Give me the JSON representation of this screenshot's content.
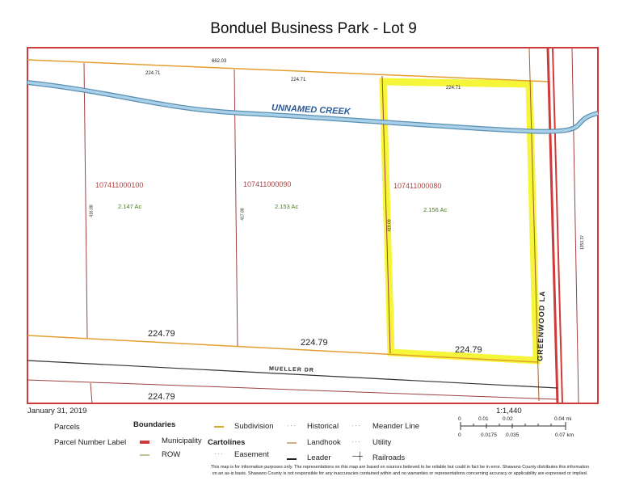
{
  "title": "Bonduel Business Park - Lot 9",
  "map": {
    "creek_label": "UNNAMED CREEK",
    "road_labels": {
      "mueller": "MUELLER DR",
      "greenwood": "GREENWOOD LA"
    },
    "dimensions": {
      "top_total": "662.03",
      "top1": "224.71",
      "top2": "224.71",
      "top3": "224.71",
      "bottom1": "224.79",
      "bottom2": "224.79",
      "bottom3": "224.79",
      "bottom_lower": "224.79",
      "side1": "416.88",
      "side2": "417.88",
      "side3": "419.09",
      "side_right": "1353.37"
    },
    "parcels": [
      {
        "number": "107411000100",
        "acres": "2.147 Ac"
      },
      {
        "number": "107411000090",
        "acres": "2.153 Ac"
      },
      {
        "number": "107411000080",
        "acres": "2.156 Ac",
        "highlighted": true
      }
    ],
    "colors": {
      "municipality": "#d03a3a",
      "subdivision": "#e3a030",
      "parcel_line": "#a04040",
      "creek": "#8fc0dc",
      "highlight": "#f5f53a",
      "parcel_label": "#b04040",
      "acres_label": "#4a7a20"
    }
  },
  "footer": {
    "date": "January 31, 2019",
    "scale": "1:1,440",
    "scale_mi": [
      "0",
      "0.01",
      "0.02",
      "0.04 mi"
    ],
    "scale_km": [
      "0",
      "0.0175",
      "0.035",
      "0.07 km"
    ],
    "legend": {
      "parcels": "Parcels",
      "parcel_number_label": "Parcel Number Label",
      "boundaries": "Boundaries",
      "municipality": "Municipality",
      "row": "ROW",
      "cartolines": "Cartolines",
      "subdivision": "Subdivision",
      "easement": "Easement",
      "historical": "Historical",
      "landhook": "Landhook",
      "leader": "Leader",
      "meander": "Meander Line",
      "utility": "Utility",
      "railroads": "Railroads"
    },
    "disclaimer1": "This map is for information purposes only. The representations on this map are based on sources believed to be reliable but could in fact be in error. Shawano County distributes this information",
    "disclaimer2": "on an as-is basis. Shawano County is not responsible for any inaccuracies contained within and no warranties or representations concerning accuracy or applicability are expressed or implied."
  }
}
